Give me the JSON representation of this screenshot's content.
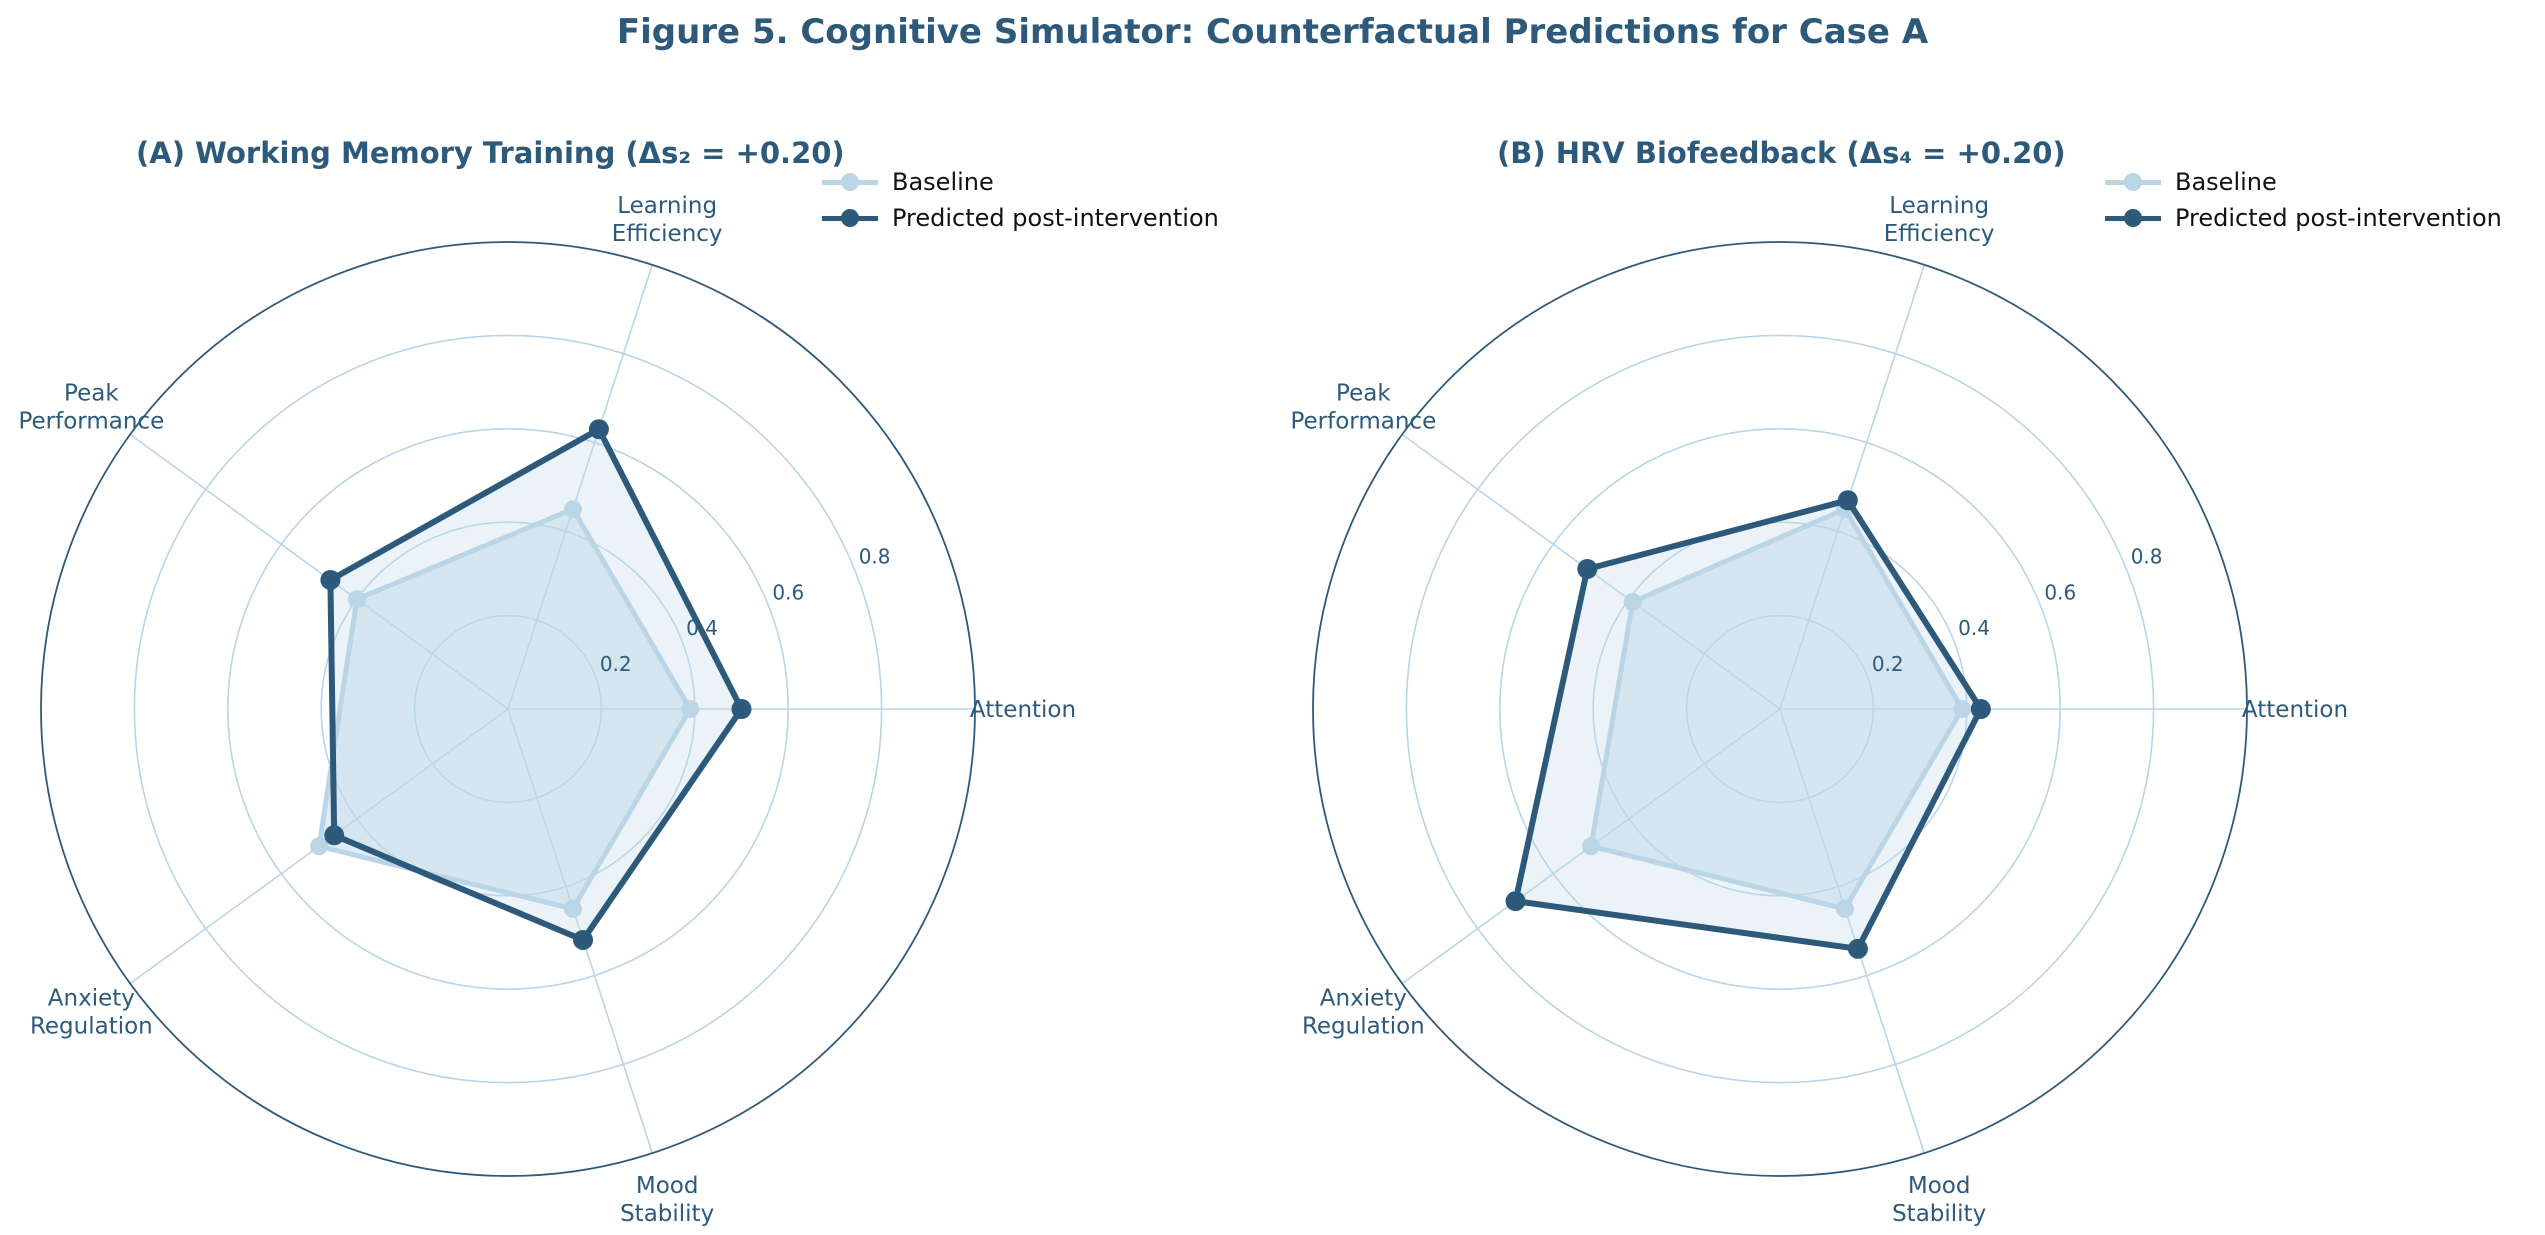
{
  "figure": {
    "title": "Figure 5. Cognitive Simulator: Counterfactual Predictions for Case A"
  },
  "colors": {
    "baseline": "#b9d5e6",
    "predicted": "#2d5a7b",
    "fill": "#bcd7e8",
    "grid": "#b9d5e6",
    "text": "#2d5a7b"
  },
  "chart_data": [
    {
      "type": "radar",
      "title": "(A) Working Memory Training (Δs₂ = +0.20)",
      "axes": [
        "Attention",
        "Learning\nEfficiency",
        "Peak\nPerformance",
        "Anxiety\nRegulation",
        "Mood\nStability"
      ],
      "rlim": [
        0,
        1.0
      ],
      "rticks": [
        0.2,
        0.4,
        0.6,
        0.8
      ],
      "grid": true,
      "legend_position": "top-right",
      "legend": [
        "Baseline",
        "Predicted post-intervention"
      ],
      "series": [
        {
          "name": "Baseline",
          "values": [
            0.39,
            0.45,
            0.4,
            0.5,
            0.45
          ]
        },
        {
          "name": "Predicted post-intervention",
          "values": [
            0.5,
            0.63,
            0.47,
            0.46,
            0.52
          ]
        }
      ]
    },
    {
      "type": "radar",
      "title": "(B) HRV Biofeedback (Δs₄ = +0.20)",
      "axes": [
        "Attention",
        "Learning\nEfficiency",
        "Peak\nPerformance",
        "Anxiety\nRegulation",
        "Mood\nStability"
      ],
      "rlim": [
        0,
        1.0
      ],
      "rticks": [
        0.2,
        0.4,
        0.6,
        0.8
      ],
      "grid": true,
      "legend_position": "top-right",
      "legend": [
        "Baseline",
        "Predicted post-intervention"
      ],
      "series": [
        {
          "name": "Baseline",
          "values": [
            0.39,
            0.45,
            0.39,
            0.5,
            0.45
          ]
        },
        {
          "name": "Predicted post-intervention",
          "values": [
            0.43,
            0.47,
            0.51,
            0.7,
            0.54
          ]
        }
      ]
    }
  ]
}
